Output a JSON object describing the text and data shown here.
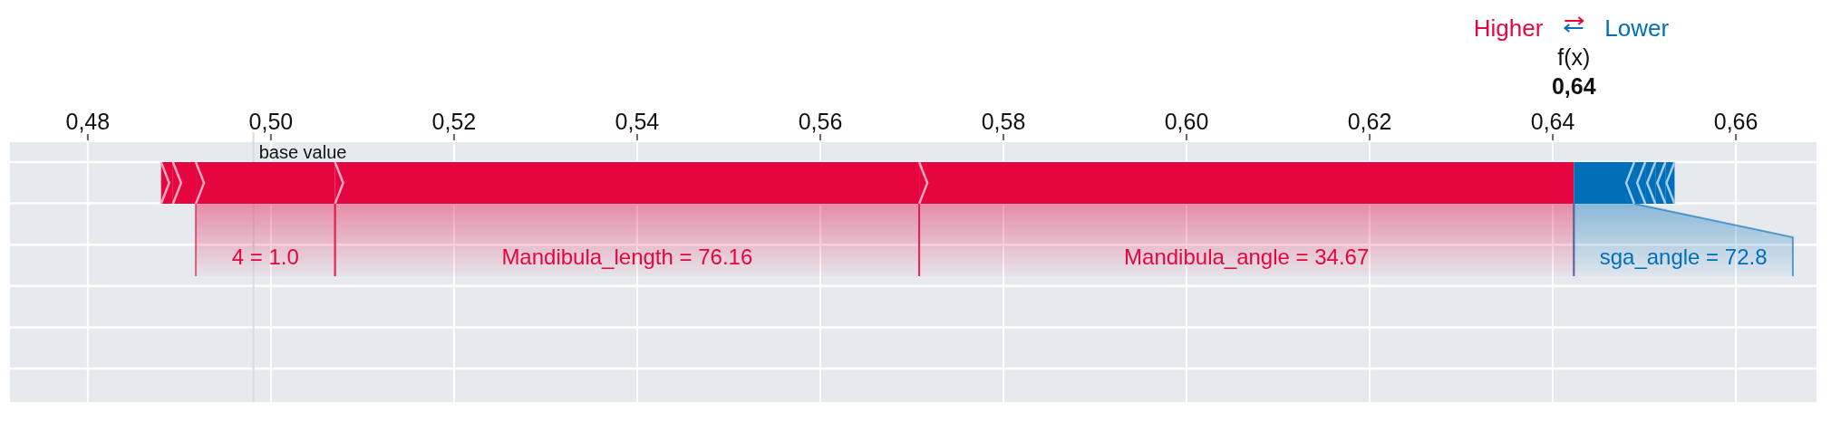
{
  "chart_data": {
    "type": "bar",
    "orientation": "horizontal",
    "categories": [
      null
    ],
    "series": [
      {
        "color": "#e5053f",
        "values": [
          0.0013
        ],
        "base": [
          0.488
        ]
      },
      {
        "color": "#e5053f",
        "values": [
          0.0025
        ],
        "base": [
          0.4893
        ]
      },
      {
        "name": "4 = 1.0",
        "color": "#e5053f",
        "values": [
          0.0152
        ],
        "base": [
          0.4918
        ]
      },
      {
        "name": "Mandibula_length = 76.16",
        "color": "#e5053f",
        "values": [
          0.0638
        ],
        "base": [
          0.507
        ]
      },
      {
        "name": "Mandibula_angle = 34.67",
        "color": "#e5053f",
        "values": [
          0.0715
        ],
        "base": [
          0.5708
        ]
      },
      {
        "name": "sga_angle = 72.8",
        "color": "#006fb9",
        "values": [
          -0.0066
        ],
        "base": [
          0.6489
        ]
      },
      {
        "color": "#006fb9",
        "values": [
          -0.0012
        ],
        "base": [
          0.6501
        ]
      },
      {
        "color": "#006fb9",
        "values": [
          -0.0011
        ],
        "base": [
          0.6512
        ]
      },
      {
        "color": "#006fb9",
        "values": [
          -0.0011
        ],
        "base": [
          0.6523
        ]
      },
      {
        "color": "#006fb9",
        "values": [
          -0.001
        ],
        "base": [
          0.6533
        ]
      }
    ],
    "xlim": [
      0.4715,
      0.6688
    ],
    "xticks": [
      {
        "value": 0.48,
        "label": "0,48"
      },
      {
        "value": 0.5,
        "label": "0,50"
      },
      {
        "value": 0.52,
        "label": "0,52"
      },
      {
        "value": 0.54,
        "label": "0,54"
      },
      {
        "value": 0.56,
        "label": "0,56"
      },
      {
        "value": 0.58,
        "label": "0,58"
      },
      {
        "value": 0.6,
        "label": "0,60"
      },
      {
        "value": 0.62,
        "label": "0,62"
      },
      {
        "value": 0.64,
        "label": "0,64"
      },
      {
        "value": 0.66,
        "label": "0,66"
      }
    ],
    "grid": true,
    "ref_lines": [
      {
        "axis": "x",
        "value": 0.4981,
        "label": "base value"
      }
    ],
    "annotations": [
      "Higher",
      "Lower",
      "f(x)",
      "0,64"
    ]
  }
}
